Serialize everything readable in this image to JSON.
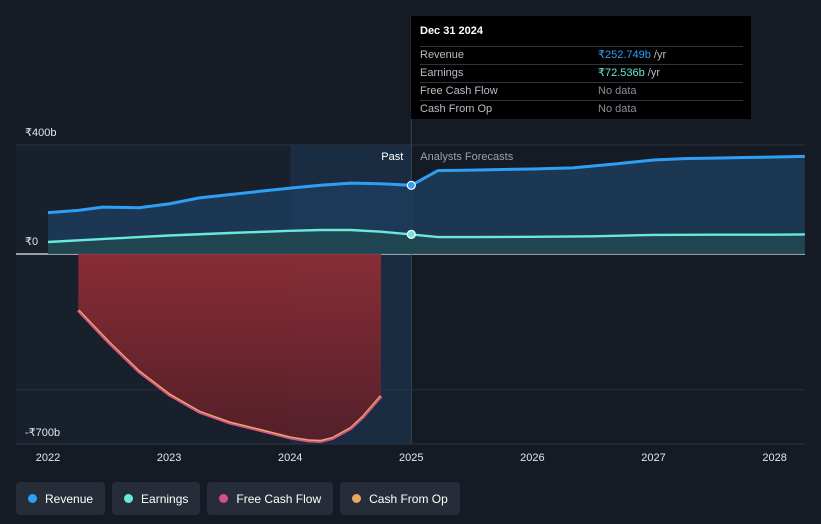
{
  "tooltip": {
    "date": "Dec 31 2024",
    "rows": [
      {
        "label": "Revenue",
        "value": "₹252.749b",
        "unit": "/yr",
        "color": "#2f9ef5"
      },
      {
        "label": "Earnings",
        "value": "₹72.536b",
        "unit": "/yr",
        "color": "#6be8da"
      },
      {
        "label": "Free Cash Flow",
        "value": "No data",
        "unit": "",
        "color": "#8a8f97"
      },
      {
        "label": "Cash From Op",
        "value": "No data",
        "unit": "",
        "color": "#8a8f97"
      }
    ]
  },
  "legend": [
    {
      "label": "Revenue",
      "color": "#2f9ef5"
    },
    {
      "label": "Earnings",
      "color": "#6be8da"
    },
    {
      "label": "Free Cash Flow",
      "color": "#d64d91"
    },
    {
      "label": "Cash From Op",
      "color": "#e8a85f"
    }
  ],
  "chart_data": {
    "type": "area",
    "y_unit": "₹ billion",
    "xlim": [
      2021.9,
      2028.25
    ],
    "ylim": [
      -700,
      400
    ],
    "yticks": [
      {
        "value": 400,
        "label": "₹400b"
      },
      {
        "value": 0,
        "label": "₹0"
      },
      {
        "value": -700,
        "label": "-₹700b"
      }
    ],
    "xticks": [
      2022,
      2023,
      2024,
      2025,
      2026,
      2027,
      2028
    ],
    "xtick_labels": [
      "2022",
      "2023",
      "2024",
      "2025",
      "2026",
      "2027",
      "2028"
    ],
    "past_label": "Past",
    "forecast_label": "Analysts Forecasts",
    "divider_x": 2025.0,
    "highlight_range": [
      2024.0,
      2025.0
    ],
    "series": [
      {
        "name": "Revenue",
        "color": "#2f9ef5",
        "x": [
          2022.0,
          2022.25,
          2022.45,
          2022.75,
          2023.0,
          2023.25,
          2023.5,
          2023.75,
          2024.0,
          2024.25,
          2024.5,
          2024.75,
          2025.0,
          2025.22,
          2025.5,
          2025.75,
          2026.0,
          2026.33,
          2026.67,
          2027.0,
          2027.25,
          2027.5,
          2027.75,
          2028.0,
          2028.25
        ],
        "values": [
          152,
          160,
          172,
          170,
          184,
          206,
          218,
          230,
          242,
          252,
          260,
          258,
          252,
          306,
          308,
          310,
          312,
          316,
          330,
          345,
          350,
          352,
          354,
          356,
          358
        ]
      },
      {
        "name": "Earnings",
        "color": "#6be8da",
        "x": [
          2022.0,
          2022.5,
          2023.0,
          2023.5,
          2024.0,
          2024.25,
          2024.5,
          2024.75,
          2025.0,
          2025.22,
          2025.5,
          2026.0,
          2026.5,
          2027.0,
          2027.5,
          2028.0,
          2028.25
        ],
        "values": [
          44,
          56,
          68,
          77,
          85,
          88,
          88,
          82,
          72,
          62,
          62,
          63,
          65,
          70,
          71,
          71,
          72
        ]
      },
      {
        "name": "Free Cash Flow",
        "color": "#d64d91",
        "x": [
          2022.25,
          2022.5,
          2022.75,
          2023.0,
          2023.25,
          2023.5,
          2023.75,
          2024.0,
          2024.15,
          2024.25,
          2024.35,
          2024.5,
          2024.6,
          2024.75
        ],
        "values": [
          -211,
          -328,
          -436,
          -521,
          -585,
          -625,
          -652,
          -680,
          -691,
          -693,
          -682,
          -645,
          -604,
          -527
        ]
      },
      {
        "name": "Cash From Op",
        "color": "#e8a85f",
        "x": [
          2022.25,
          2022.5,
          2022.75,
          2023.0,
          2023.25,
          2023.5,
          2023.75,
          2024.0,
          2024.15,
          2024.25,
          2024.35,
          2024.5,
          2024.6,
          2024.75
        ],
        "values": [
          -208,
          -325,
          -433,
          -518,
          -582,
          -622,
          -649,
          -677,
          -688,
          -690,
          -679,
          -642,
          -601,
          -524
        ]
      }
    ]
  }
}
